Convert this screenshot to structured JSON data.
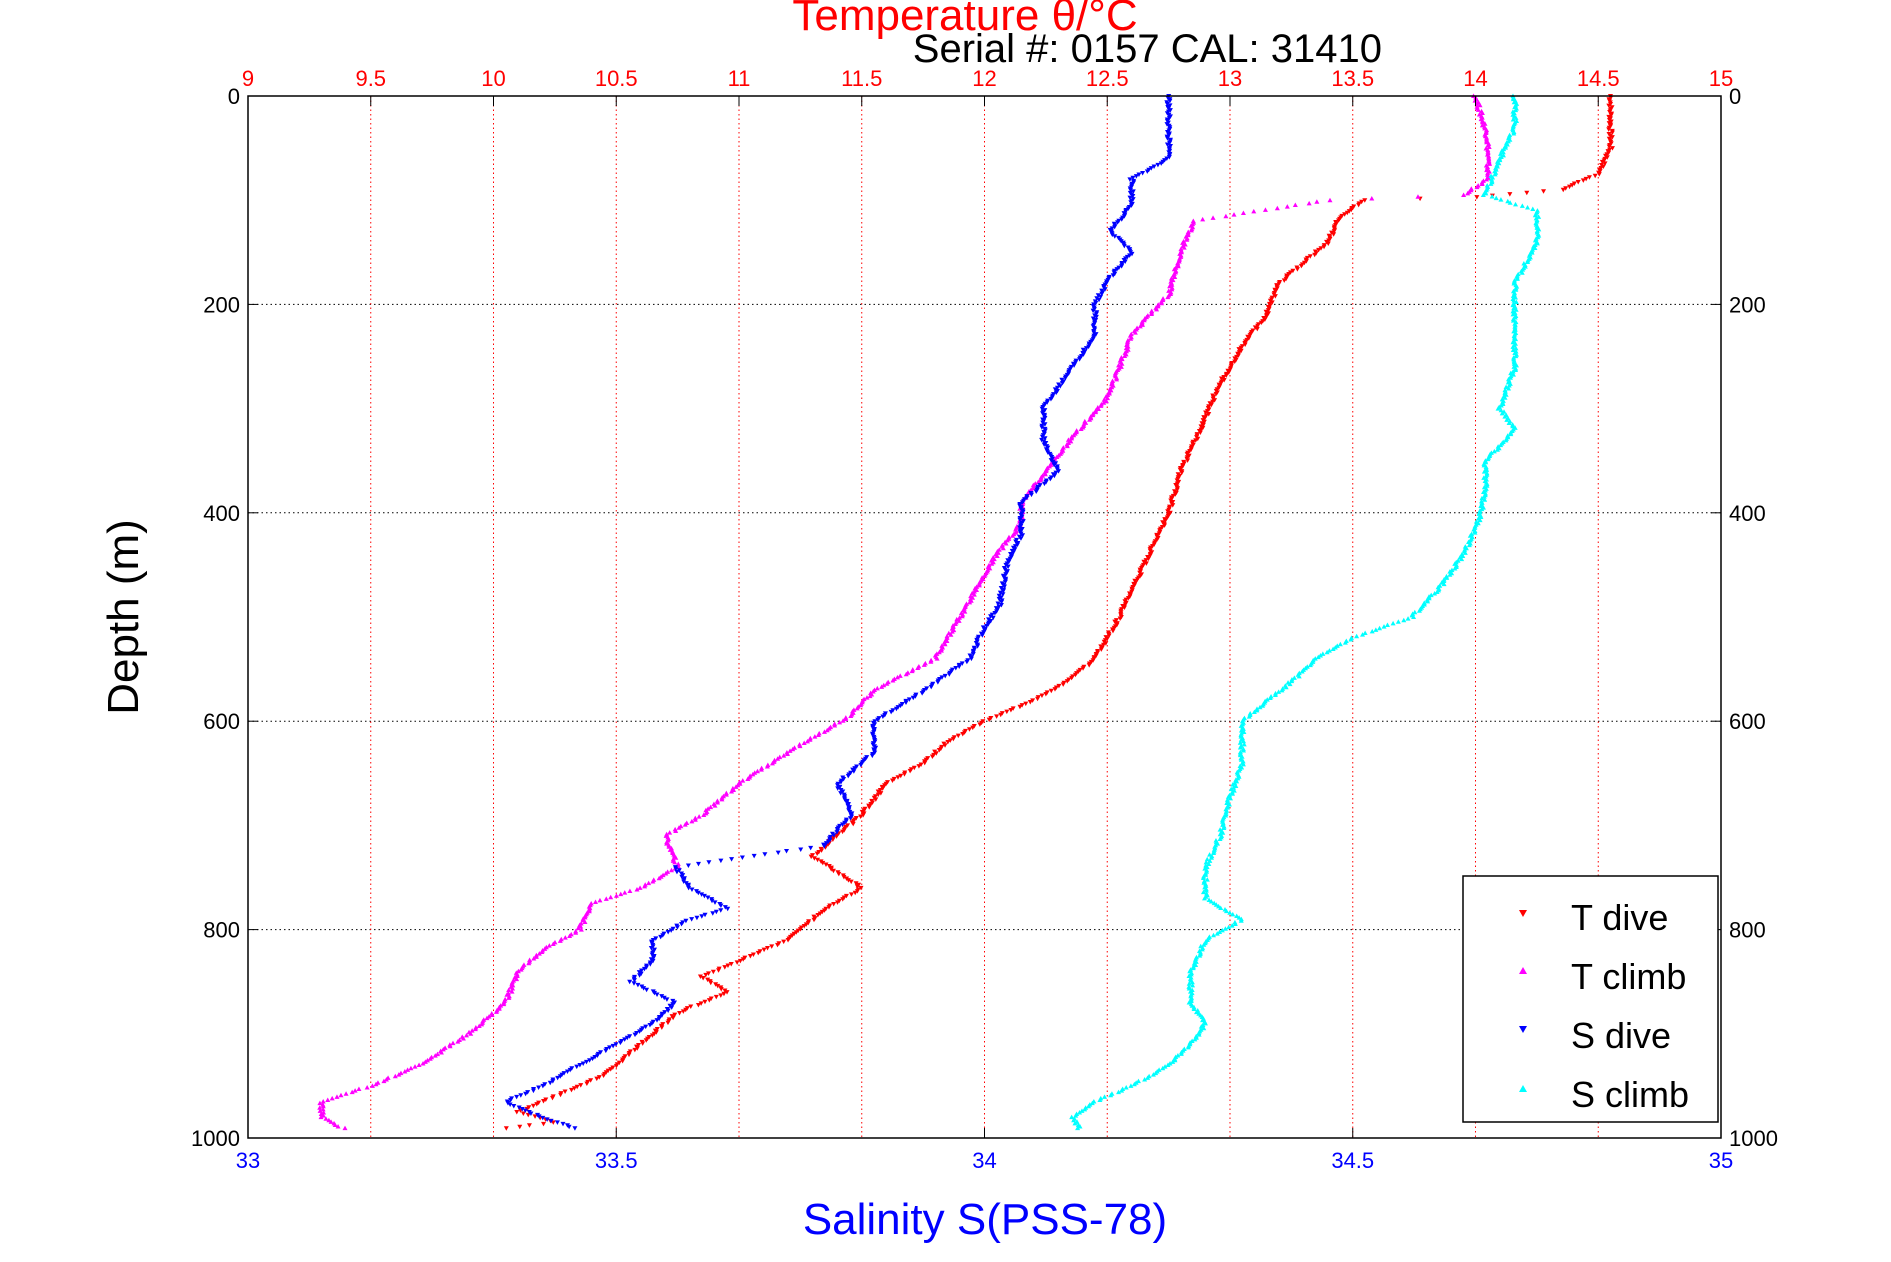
{
  "chart_data": {
    "type": "scatter",
    "title": "Temperature θ/°C",
    "subtitle": "Serial #: 0157  CAL: 31410",
    "ylabel": "Depth (m)",
    "xlabel": "Salinity S(PSS-78)",
    "ylim": [
      0,
      1000
    ],
    "y_reversed": true,
    "y_ticks": [
      "0",
      "200",
      "400",
      "600",
      "800",
      "1000"
    ],
    "x_bottom": {
      "lim": [
        33,
        35
      ],
      "ticks": [
        "33",
        "33.5",
        "34",
        "34.5",
        "35"
      ],
      "color": "#0000ff"
    },
    "x_top": {
      "lim": [
        9,
        15
      ],
      "ticks": [
        "9",
        "9.5",
        "10",
        "10.5",
        "11",
        "11.5",
        "12",
        "12.5",
        "13",
        "13.5",
        "14",
        "14.5",
        "15"
      ],
      "color": "#ff0000"
    },
    "grid": true,
    "legend_position": "bottom-right",
    "series": [
      {
        "name": "T dive",
        "axis": "top",
        "color": "#ff0000",
        "marker": "triangle-down",
        "points": [
          [
            14.55,
            0
          ],
          [
            14.55,
            20
          ],
          [
            14.55,
            50
          ],
          [
            14.5,
            75
          ],
          [
            14.35,
            90
          ],
          [
            14.0,
            97
          ],
          [
            13.55,
            100
          ],
          [
            13.45,
            115
          ],
          [
            13.4,
            140
          ],
          [
            13.3,
            160
          ],
          [
            13.2,
            180
          ],
          [
            13.15,
            210
          ],
          [
            13.05,
            240
          ],
          [
            12.95,
            280
          ],
          [
            12.88,
            320
          ],
          [
            12.8,
            360
          ],
          [
            12.75,
            400
          ],
          [
            12.65,
            450
          ],
          [
            12.55,
            500
          ],
          [
            12.45,
            540
          ],
          [
            12.35,
            560
          ],
          [
            12.2,
            580
          ],
          [
            12.0,
            600
          ],
          [
            11.85,
            620
          ],
          [
            11.75,
            640
          ],
          [
            11.6,
            660
          ],
          [
            11.5,
            690
          ],
          [
            11.45,
            700
          ],
          [
            11.3,
            730
          ],
          [
            11.5,
            760
          ],
          [
            11.35,
            780
          ],
          [
            11.2,
            810
          ],
          [
            11.0,
            830
          ],
          [
            10.85,
            845
          ],
          [
            10.95,
            860
          ],
          [
            10.75,
            880
          ],
          [
            10.65,
            900
          ],
          [
            10.55,
            920
          ],
          [
            10.45,
            940
          ],
          [
            10.25,
            960
          ],
          [
            10.1,
            975
          ],
          [
            10.25,
            985
          ],
          [
            10.0,
            992
          ]
        ]
      },
      {
        "name": "T climb",
        "axis": "top",
        "color": "#ff00ff",
        "marker": "triangle-up",
        "points": [
          [
            14.0,
            0
          ],
          [
            14.05,
            40
          ],
          [
            14.05,
            80
          ],
          [
            13.95,
            95
          ],
          [
            13.4,
            100
          ],
          [
            12.85,
            120
          ],
          [
            12.8,
            150
          ],
          [
            12.75,
            190
          ],
          [
            12.6,
            230
          ],
          [
            12.5,
            290
          ],
          [
            12.35,
            330
          ],
          [
            12.25,
            360
          ],
          [
            12.15,
            390
          ],
          [
            12.15,
            410
          ],
          [
            12.05,
            440
          ],
          [
            11.95,
            480
          ],
          [
            11.85,
            520
          ],
          [
            11.8,
            540
          ],
          [
            11.55,
            570
          ],
          [
            11.45,
            595
          ],
          [
            11.2,
            630
          ],
          [
            11.0,
            660
          ],
          [
            10.85,
            690
          ],
          [
            10.7,
            710
          ],
          [
            10.75,
            740
          ],
          [
            10.6,
            760
          ],
          [
            10.4,
            775
          ],
          [
            10.35,
            800
          ],
          [
            10.2,
            820
          ],
          [
            10.1,
            840
          ],
          [
            10.05,
            870
          ],
          [
            9.9,
            900
          ],
          [
            9.7,
            930
          ],
          [
            9.5,
            950
          ],
          [
            9.3,
            965
          ],
          [
            9.3,
            980
          ],
          [
            9.4,
            992
          ]
        ]
      },
      {
        "name": "S dive",
        "axis": "bottom",
        "color": "#0000ff",
        "marker": "triangle-down",
        "points": [
          [
            34.25,
            0
          ],
          [
            34.25,
            30
          ],
          [
            34.25,
            60
          ],
          [
            34.2,
            80
          ],
          [
            34.2,
            93
          ],
          [
            34.2,
            105
          ],
          [
            34.17,
            130
          ],
          [
            34.2,
            150
          ],
          [
            34.17,
            175
          ],
          [
            34.15,
            200
          ],
          [
            34.15,
            230
          ],
          [
            34.12,
            260
          ],
          [
            34.1,
            280
          ],
          [
            34.08,
            300
          ],
          [
            34.08,
            330
          ],
          [
            34.1,
            360
          ],
          [
            34.05,
            390
          ],
          [
            34.05,
            420
          ],
          [
            34.03,
            450
          ],
          [
            34.02,
            490
          ],
          [
            34.0,
            510
          ],
          [
            33.98,
            540
          ],
          [
            33.92,
            570
          ],
          [
            33.85,
            600
          ],
          [
            33.85,
            630
          ],
          [
            33.8,
            660
          ],
          [
            33.82,
            690
          ],
          [
            33.78,
            720
          ],
          [
            33.58,
            740
          ],
          [
            33.6,
            760
          ],
          [
            33.65,
            780
          ],
          [
            33.6,
            790
          ],
          [
            33.55,
            810
          ],
          [
            33.55,
            830
          ],
          [
            33.52,
            850
          ],
          [
            33.58,
            870
          ],
          [
            33.55,
            890
          ],
          [
            33.5,
            910
          ],
          [
            33.45,
            930
          ],
          [
            33.4,
            950
          ],
          [
            33.35,
            965
          ],
          [
            33.38,
            975
          ],
          [
            33.42,
            985
          ],
          [
            33.45,
            992
          ]
        ]
      },
      {
        "name": "S climb",
        "axis": "bottom",
        "color": "#00ffff",
        "marker": "triangle-up",
        "points": [
          [
            34.72,
            0
          ],
          [
            34.72,
            30
          ],
          [
            34.7,
            60
          ],
          [
            34.68,
            95
          ],
          [
            34.75,
            110
          ],
          [
            34.75,
            140
          ],
          [
            34.72,
            180
          ],
          [
            34.72,
            220
          ],
          [
            34.72,
            260
          ],
          [
            34.7,
            300
          ],
          [
            34.72,
            320
          ],
          [
            34.68,
            350
          ],
          [
            34.68,
            380
          ],
          [
            34.67,
            410
          ],
          [
            34.65,
            440
          ],
          [
            34.62,
            470
          ],
          [
            34.58,
            500
          ],
          [
            34.5,
            520
          ],
          [
            34.45,
            540
          ],
          [
            34.42,
            560
          ],
          [
            34.35,
            600
          ],
          [
            34.35,
            640
          ],
          [
            34.33,
            680
          ],
          [
            34.32,
            710
          ],
          [
            34.3,
            740
          ],
          [
            34.3,
            770
          ],
          [
            34.35,
            790
          ],
          [
            34.3,
            810
          ],
          [
            34.28,
            840
          ],
          [
            34.28,
            870
          ],
          [
            34.3,
            890
          ],
          [
            34.28,
            910
          ],
          [
            34.25,
            930
          ],
          [
            34.2,
            950
          ],
          [
            34.15,
            965
          ],
          [
            34.12,
            980
          ],
          [
            34.13,
            992
          ]
        ]
      }
    ]
  }
}
